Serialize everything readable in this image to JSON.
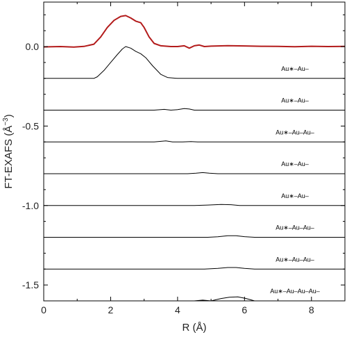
{
  "chart_data": {
    "type": "line",
    "xlabel": "R (Å)",
    "ylabel": "FT-EXAFS (Å",
    "ylabel_exponent": "−3",
    "ylabel_close": ")",
    "xlim": [
      0,
      9
    ],
    "ylim": [
      -1.6,
      0.28
    ],
    "xticks": [
      0,
      2,
      4,
      6,
      8
    ],
    "xtick_labels": [
      "0",
      "2",
      "4",
      "6",
      "8"
    ],
    "yticks": [
      0.0,
      -0.5,
      -1.0,
      -1.5
    ],
    "ytick_labels": [
      "0.0",
      "-0.5",
      "-1.0",
      "-1.5"
    ],
    "grid": false,
    "colors": {
      "total": "#b31b1b",
      "paths": "#000000"
    },
    "series": [
      {
        "label": "",
        "color": "#b31b1b",
        "points": [
          [
            0,
            -0.002
          ],
          [
            0.5,
            0.0
          ],
          [
            0.9,
            -0.003
          ],
          [
            1.2,
            0.001
          ],
          [
            1.5,
            0.015
          ],
          [
            1.7,
            0.06
          ],
          [
            1.9,
            0.12
          ],
          [
            2.1,
            0.165
          ],
          [
            2.3,
            0.19
          ],
          [
            2.45,
            0.195
          ],
          [
            2.6,
            0.18
          ],
          [
            2.75,
            0.16
          ],
          [
            2.9,
            0.15
          ],
          [
            3.0,
            0.12
          ],
          [
            3.15,
            0.06
          ],
          [
            3.3,
            0.02
          ],
          [
            3.5,
            0.005
          ],
          [
            3.8,
            0.0
          ],
          [
            4.0,
            0.0
          ],
          [
            4.2,
            0.005
          ],
          [
            4.35,
            -0.01
          ],
          [
            4.5,
            0.005
          ],
          [
            4.65,
            0.01
          ],
          [
            4.8,
            0.0
          ],
          [
            5.0,
            0.003
          ],
          [
            5.5,
            0.006
          ],
          [
            6.0,
            0.004
          ],
          [
            6.5,
            0.002
          ],
          [
            7.0,
            0.001
          ],
          [
            7.5,
            -0.001
          ],
          [
            8.0,
            0.002
          ],
          [
            8.5,
            0.0
          ],
          [
            9.0,
            0.001
          ]
        ]
      },
      {
        "label": "Au∗–Au–",
        "color": "#000000",
        "points": [
          [
            0,
            -0.2
          ],
          [
            1.5,
            -0.2
          ],
          [
            1.6,
            -0.19
          ],
          [
            1.8,
            -0.15
          ],
          [
            2.0,
            -0.1
          ],
          [
            2.2,
            -0.05
          ],
          [
            2.35,
            -0.015
          ],
          [
            2.45,
            0.0
          ],
          [
            2.6,
            -0.01
          ],
          [
            2.75,
            -0.03
          ],
          [
            2.9,
            -0.045
          ],
          [
            3.05,
            -0.07
          ],
          [
            3.25,
            -0.12
          ],
          [
            3.5,
            -0.175
          ],
          [
            3.7,
            -0.195
          ],
          [
            4.0,
            -0.2
          ],
          [
            9.0,
            -0.2
          ]
        ]
      },
      {
        "label": "Au∗–Au–",
        "color": "#000000",
        "points": [
          [
            0,
            -0.4
          ],
          [
            3.3,
            -0.4
          ],
          [
            3.6,
            -0.395
          ],
          [
            3.8,
            -0.4
          ],
          [
            4.0,
            -0.397
          ],
          [
            4.2,
            -0.39
          ],
          [
            4.35,
            -0.393
          ],
          [
            4.5,
            -0.4
          ],
          [
            9.0,
            -0.4
          ]
        ]
      },
      {
        "label": "Au∗–Au–Au–",
        "color": "#000000",
        "points": [
          [
            0,
            -0.6
          ],
          [
            3.3,
            -0.6
          ],
          [
            3.65,
            -0.593
          ],
          [
            3.85,
            -0.6
          ],
          [
            4.15,
            -0.6
          ],
          [
            4.4,
            -0.598
          ],
          [
            4.6,
            -0.6
          ],
          [
            9.0,
            -0.6
          ]
        ]
      },
      {
        "label": "Au∗–Au–",
        "color": "#000000",
        "points": [
          [
            0,
            -0.8
          ],
          [
            4.3,
            -0.8
          ],
          [
            4.55,
            -0.797
          ],
          [
            4.75,
            -0.793
          ],
          [
            4.95,
            -0.797
          ],
          [
            5.2,
            -0.8
          ],
          [
            9.0,
            -0.8
          ]
        ]
      },
      {
        "label": "Au∗–Au–",
        "color": "#000000",
        "points": [
          [
            0,
            -1.0
          ],
          [
            4.5,
            -1.0
          ],
          [
            4.9,
            -0.997
          ],
          [
            5.3,
            -0.993
          ],
          [
            5.6,
            -0.995
          ],
          [
            5.85,
            -1.0
          ],
          [
            9.0,
            -1.0
          ]
        ]
      },
      {
        "label": "Au∗–Au–Au–",
        "color": "#000000",
        "points": [
          [
            0,
            -1.2
          ],
          [
            4.9,
            -1.2
          ],
          [
            5.2,
            -1.197
          ],
          [
            5.5,
            -1.19
          ],
          [
            5.75,
            -1.19
          ],
          [
            6.0,
            -1.196
          ],
          [
            6.3,
            -1.2
          ],
          [
            9.0,
            -1.2
          ]
        ]
      },
      {
        "label": "Au∗–Au–Au–",
        "color": "#000000",
        "points": [
          [
            0,
            -1.4
          ],
          [
            4.5,
            -1.4
          ],
          [
            4.8,
            -1.4
          ],
          [
            5.2,
            -1.396
          ],
          [
            5.5,
            -1.39
          ],
          [
            5.75,
            -1.39
          ],
          [
            6.0,
            -1.396
          ],
          [
            6.3,
            -1.4
          ],
          [
            9.0,
            -1.4
          ]
        ]
      },
      {
        "label": "Au∗–Au–Au–Au–",
        "color": "#000000",
        "points": [
          [
            4.5,
            -1.6
          ],
          [
            4.75,
            -1.595
          ],
          [
            5.0,
            -1.6
          ],
          [
            5.3,
            -1.585
          ],
          [
            5.55,
            -1.577
          ],
          [
            5.8,
            -1.575
          ],
          [
            6.05,
            -1.585
          ],
          [
            6.3,
            -1.6
          ]
        ]
      }
    ]
  }
}
